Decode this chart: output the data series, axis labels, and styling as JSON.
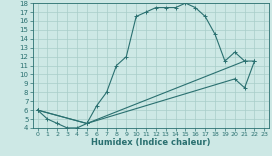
{
  "xlabel": "Humidex (Indice chaleur)",
  "bg_color": "#cde8e5",
  "grid_color": "#a8cdc9",
  "line_color": "#2a7070",
  "xlim": [
    -0.5,
    23.5
  ],
  "ylim": [
    4,
    18
  ],
  "xticks": [
    0,
    1,
    2,
    3,
    4,
    5,
    6,
    7,
    8,
    9,
    10,
    11,
    12,
    13,
    14,
    15,
    16,
    17,
    18,
    19,
    20,
    21,
    22,
    23
  ],
  "yticks": [
    4,
    5,
    6,
    7,
    8,
    9,
    10,
    11,
    12,
    13,
    14,
    15,
    16,
    17,
    18
  ],
  "curves": [
    {
      "x": [
        0,
        1,
        2,
        3,
        4,
        5,
        6,
        7,
        8,
        9,
        10,
        11,
        12,
        13,
        14,
        15,
        16,
        17,
        18,
        19,
        20,
        21
      ],
      "y": [
        6,
        5,
        4.5,
        4,
        4,
        4.5,
        6.5,
        8,
        11,
        12,
        16.5,
        17,
        17.5,
        17.5,
        17.5,
        18,
        17.5,
        16.5,
        14.5,
        11.5,
        12.5,
        11.5
      ]
    },
    {
      "x": [
        0,
        5,
        21,
        22
      ],
      "y": [
        6,
        4.5,
        11.5,
        11.5
      ]
    },
    {
      "x": [
        0,
        5,
        20,
        21,
        22
      ],
      "y": [
        6,
        4.5,
        9.5,
        8.5,
        11.5
      ]
    }
  ]
}
